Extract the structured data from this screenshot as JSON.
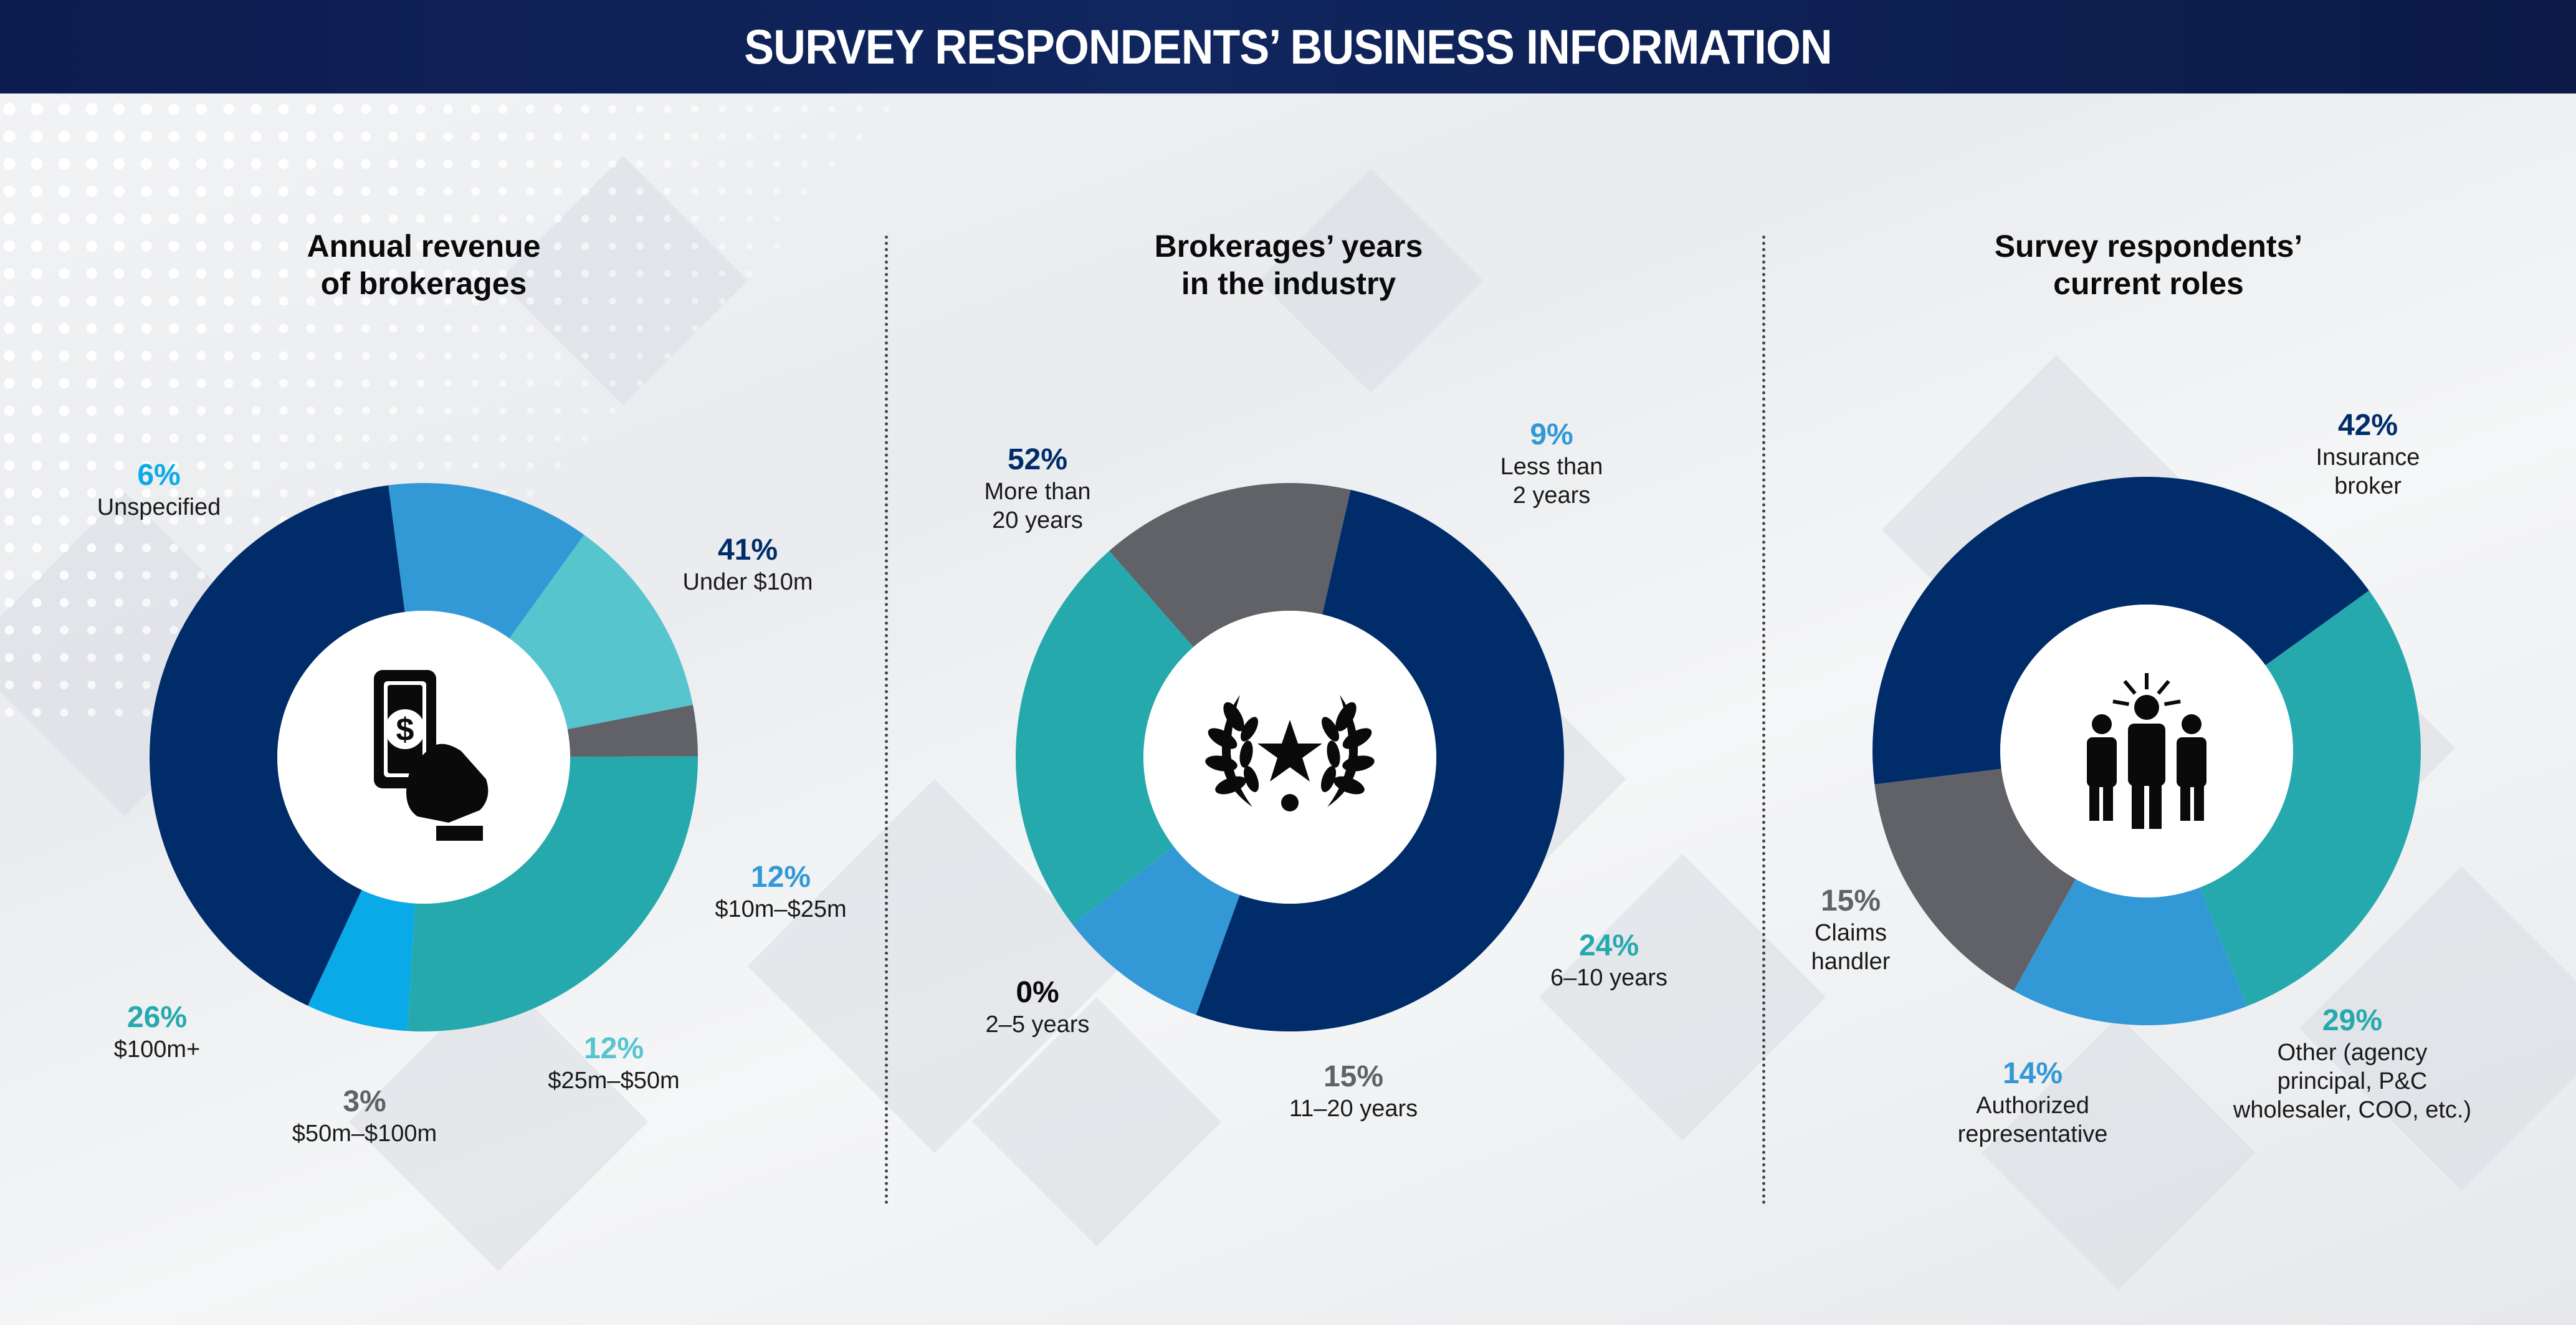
{
  "header": {
    "title": "SURVEY RESPONDENTS’ BUSINESS INFORMATION"
  },
  "colors": {
    "navy": "#002d6a",
    "blue": "#3399d6",
    "teal": "#26a9ad",
    "light_teal": "#57c5ce",
    "gray": "#616268",
    "sky": "#0aa9e8"
  },
  "panels": [
    {
      "title_line1": "Annual revenue",
      "title_line2": "of brokerages",
      "icon": "money-in-hand-icon",
      "chart_data": {
        "type": "pie",
        "donut": true,
        "title": "Annual revenue of brokerages",
        "slices": [
          {
            "label": "Under $10m",
            "value": 41,
            "pct": "41%",
            "color": "#002d6a"
          },
          {
            "label": "$10m–$25m",
            "value": 12,
            "pct": "12%",
            "color": "#3399d6"
          },
          {
            "label": "$25m–$50m",
            "value": 12,
            "pct": "12%",
            "color": "#57c5ce"
          },
          {
            "label": "$50m–$100m",
            "value": 3,
            "pct": "3%",
            "color": "#616268"
          },
          {
            "label": "$100m+",
            "value": 26,
            "pct": "26%",
            "color": "#26a9ad"
          },
          {
            "label": "Unspecified",
            "value": 6,
            "pct": "6%",
            "color": "#0aa9e8"
          }
        ]
      }
    },
    {
      "title_line1": "Brokerages’ years",
      "title_line2": "in the industry",
      "icon": "laurel-star-icon",
      "chart_data": {
        "type": "pie",
        "donut": true,
        "title": "Brokerages’ years in the industry",
        "slices": [
          {
            "label": "Less than 2 years",
            "value": 9,
            "pct": "9%",
            "color": "#3399d6"
          },
          {
            "label": "6–10 years",
            "value": 24,
            "pct": "24%",
            "color": "#26a9ad"
          },
          {
            "label": "11–20 years",
            "value": 15,
            "pct": "15%",
            "color": "#616268"
          },
          {
            "label": "2–5 years",
            "value": 0,
            "pct": "0%",
            "color": "#0a0a0a"
          },
          {
            "label": "More than 20 years",
            "value": 52,
            "pct": "52%",
            "color": "#002d6a"
          }
        ]
      }
    },
    {
      "title_line1": "Survey respondents’",
      "title_line2": "current roles",
      "icon": "team-people-icon",
      "chart_data": {
        "type": "pie",
        "donut": true,
        "title": "Survey respondents’ current roles",
        "slices": [
          {
            "label": "Insurance broker",
            "value": 42,
            "pct": "42%",
            "color": "#002d6a"
          },
          {
            "label": "Other (agency principal, P&C wholesaler, COO, etc.)",
            "value": 29,
            "pct": "29%",
            "color": "#26a9ad"
          },
          {
            "label": "Authorized representative",
            "value": 14,
            "pct": "14%",
            "color": "#3399d6"
          },
          {
            "label": "Claims handler",
            "value": 15,
            "pct": "15%",
            "color": "#616268"
          }
        ]
      }
    }
  ],
  "labels": {
    "p1": {
      "unspecified": {
        "pct": "6%",
        "l1": "Unspecified"
      },
      "under10": {
        "pct": "41%",
        "l1": "Under $10m"
      },
      "m10_25": {
        "pct": "12%",
        "l1": "$10m–$25m"
      },
      "m25_50": {
        "pct": "12%",
        "l1": "$25m–$50m"
      },
      "m50_100": {
        "pct": "3%",
        "l1": "$50m–$100m"
      },
      "m100": {
        "pct": "26%",
        "l1": "$100m+"
      }
    },
    "p2": {
      "more20": {
        "pct": "52%",
        "l1": "More than",
        "l2": "20 years"
      },
      "less2": {
        "pct": "9%",
        "l1": "Less than",
        "l2": "2 years"
      },
      "y6_10": {
        "pct": "24%",
        "l1": "6–10 years"
      },
      "y11_20": {
        "pct": "15%",
        "l1": "11–20 years"
      },
      "y2_5": {
        "pct": "0%",
        "l1": "2–5 years"
      }
    },
    "p3": {
      "broker": {
        "pct": "42%",
        "l1": "Insurance",
        "l2": "broker"
      },
      "other": {
        "pct": "29%",
        "l1": "Other (agency",
        "l2": "principal, P&C",
        "l3": "wholesaler, COO, etc.)"
      },
      "authorized": {
        "pct": "14%",
        "l1": "Authorized",
        "l2": "representative"
      },
      "claims": {
        "pct": "15%",
        "l1": "Claims",
        "l2": "handler"
      }
    }
  }
}
